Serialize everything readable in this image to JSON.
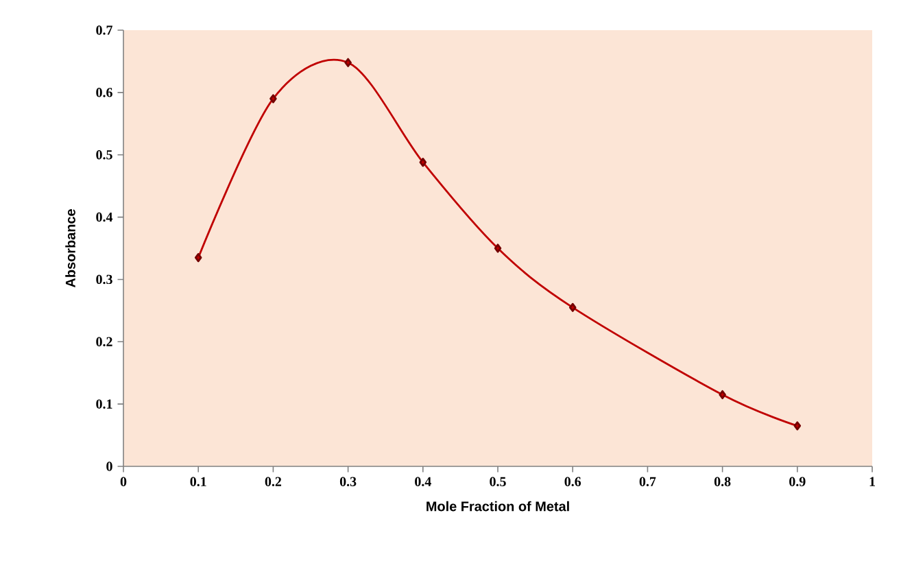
{
  "chart_data": {
    "type": "line",
    "xlabel": "Mole Fraction of Metal",
    "ylabel": "Absorbance",
    "x": [
      0.1,
      0.2,
      0.3,
      0.4,
      0.5,
      0.6,
      0.8,
      0.9
    ],
    "series": [
      {
        "color": "#c00000",
        "values": [
          0.335,
          0.59,
          0.648,
          0.488,
          0.35,
          0.255,
          0.115,
          0.065
        ]
      }
    ],
    "xlim": [
      0,
      1
    ],
    "ylim": [
      0,
      0.7
    ],
    "xticks": [
      0,
      0.1,
      0.2,
      0.3,
      0.4,
      0.5,
      0.6,
      0.7,
      0.8,
      0.9,
      1
    ],
    "yticks": [
      0,
      0.1,
      0.2,
      0.3,
      0.4,
      0.5,
      0.6,
      0.7
    ],
    "marker": "diamond",
    "line_style": "solid"
  }
}
